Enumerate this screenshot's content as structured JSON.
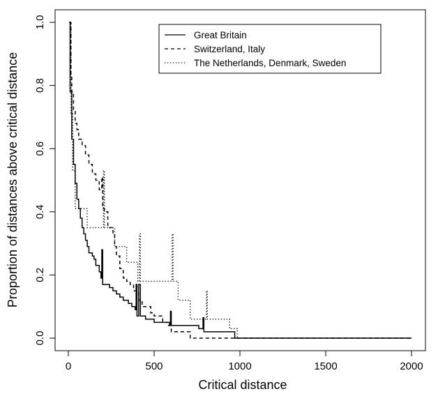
{
  "chart_data": {
    "type": "line",
    "xlabel": "Critical distance",
    "ylabel": "Proportion of distances above critical distance",
    "xlim": [
      0,
      2000
    ],
    "ylim": [
      0,
      1.0
    ],
    "x_ticks": [
      "0",
      "500",
      "1000",
      "1500",
      "2000"
    ],
    "y_ticks": [
      "0.0",
      "0.2",
      "0.4",
      "0.6",
      "0.8",
      "1.0"
    ],
    "grid": false,
    "legend_position": "top-right",
    "series": [
      {
        "name": "Great Britain",
        "line_style": "solid",
        "points": [
          [
            5,
            1.0
          ],
          [
            10,
            0.78
          ],
          [
            20,
            0.63
          ],
          [
            30,
            0.55
          ],
          [
            40,
            0.49
          ],
          [
            50,
            0.44
          ],
          [
            60,
            0.41
          ],
          [
            70,
            0.38
          ],
          [
            80,
            0.35
          ],
          [
            90,
            0.33
          ],
          [
            100,
            0.31
          ],
          [
            110,
            0.29
          ],
          [
            120,
            0.27
          ],
          [
            140,
            0.26
          ],
          [
            150,
            0.25
          ],
          [
            160,
            0.23
          ],
          [
            180,
            0.21
          ],
          [
            190,
            0.19
          ],
          [
            195,
            0.28
          ],
          [
            200,
            0.17
          ],
          [
            230,
            0.17
          ],
          [
            240,
            0.16
          ],
          [
            260,
            0.15
          ],
          [
            280,
            0.14
          ],
          [
            300,
            0.13
          ],
          [
            320,
            0.12
          ],
          [
            350,
            0.11
          ],
          [
            370,
            0.1
          ],
          [
            390,
            0.09
          ],
          [
            395,
            0.17
          ],
          [
            400,
            0.07
          ],
          [
            410,
            0.17
          ],
          [
            420,
            0.07
          ],
          [
            450,
            0.06
          ],
          [
            500,
            0.05
          ],
          [
            550,
            0.05
          ],
          [
            590,
            0.04
          ],
          [
            595,
            0.085
          ],
          [
            600,
            0.04
          ],
          [
            700,
            0.04
          ],
          [
            760,
            0.03
          ],
          [
            780,
            0.03
          ],
          [
            785,
            0.065
          ],
          [
            790,
            0.02
          ],
          [
            900,
            0.02
          ],
          [
            960,
            0.02
          ],
          [
            970,
            0.0
          ],
          [
            2000,
            0.0
          ]
        ]
      },
      {
        "name": "Switzerland, Italy",
        "line_style": "dashed",
        "points": [
          [
            8,
            1.0
          ],
          [
            15,
            0.83
          ],
          [
            20,
            0.78
          ],
          [
            30,
            0.72
          ],
          [
            40,
            0.68
          ],
          [
            50,
            0.66
          ],
          [
            60,
            0.63
          ],
          [
            80,
            0.61
          ],
          [
            100,
            0.58
          ],
          [
            120,
            0.55
          ],
          [
            140,
            0.52
          ],
          [
            160,
            0.5
          ],
          [
            180,
            0.47
          ],
          [
            190,
            0.47
          ],
          [
            195,
            0.51
          ],
          [
            200,
            0.41
          ],
          [
            210,
            0.4
          ],
          [
            230,
            0.35
          ],
          [
            250,
            0.35
          ],
          [
            260,
            0.33
          ],
          [
            270,
            0.29
          ],
          [
            280,
            0.26
          ],
          [
            300,
            0.22
          ],
          [
            320,
            0.19
          ],
          [
            340,
            0.18
          ],
          [
            360,
            0.17
          ],
          [
            380,
            0.15
          ],
          [
            400,
            0.15
          ],
          [
            410,
            0.12
          ],
          [
            430,
            0.1
          ],
          [
            460,
            0.1
          ],
          [
            480,
            0.08
          ],
          [
            500,
            0.07
          ],
          [
            550,
            0.05
          ],
          [
            580,
            0.04
          ],
          [
            600,
            0.02
          ],
          [
            700,
            0.02
          ],
          [
            710,
            0.0
          ],
          [
            2000,
            0.0
          ]
        ]
      },
      {
        "name": "The Netherlands, Denmark, Sweden",
        "line_style": "dotted",
        "points": [
          [
            5,
            1.0
          ],
          [
            15,
            0.71
          ],
          [
            25,
            0.53
          ],
          [
            40,
            0.41
          ],
          [
            100,
            0.41
          ],
          [
            110,
            0.35
          ],
          [
            200,
            0.35
          ],
          [
            205,
            0.53
          ],
          [
            210,
            0.35
          ],
          [
            260,
            0.35
          ],
          [
            270,
            0.29
          ],
          [
            330,
            0.29
          ],
          [
            340,
            0.24
          ],
          [
            400,
            0.24
          ],
          [
            405,
            0.18
          ],
          [
            415,
            0.33
          ],
          [
            420,
            0.18
          ],
          [
            600,
            0.18
          ],
          [
            605,
            0.33
          ],
          [
            610,
            0.18
          ],
          [
            640,
            0.12
          ],
          [
            700,
            0.12
          ],
          [
            710,
            0.06
          ],
          [
            800,
            0.06
          ],
          [
            805,
            0.15
          ],
          [
            810,
            0.06
          ],
          [
            930,
            0.06
          ],
          [
            940,
            0.03
          ],
          [
            980,
            0.03
          ],
          [
            985,
            0.0
          ],
          [
            2000,
            0.0
          ]
        ]
      }
    ]
  }
}
